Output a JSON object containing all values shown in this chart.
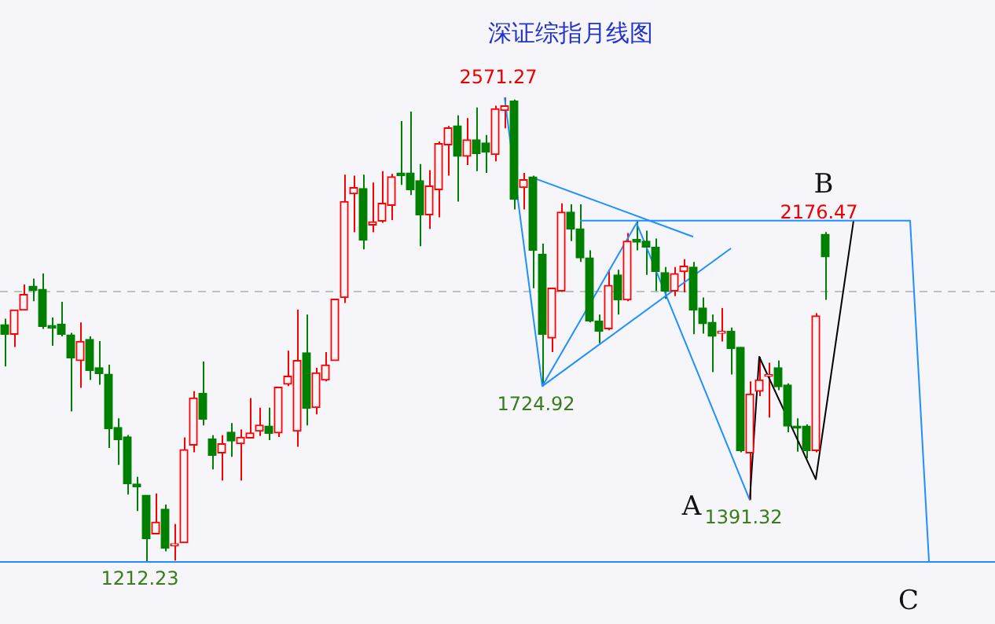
{
  "chart_data": {
    "type": "candlestick",
    "title": "深证综指月线图",
    "tick_labels": false,
    "categories": [
      null,
      null,
      null,
      null,
      null,
      null,
      null,
      null,
      null,
      null,
      null,
      null,
      null,
      null,
      null,
      null,
      null,
      null,
      null,
      null,
      null,
      null,
      null,
      null,
      null,
      null,
      null,
      null,
      null,
      null,
      null,
      null,
      null,
      null,
      null,
      null,
      null,
      null,
      null,
      null,
      null,
      null,
      null,
      null,
      null,
      null,
      null,
      null,
      null,
      null,
      null,
      null,
      null,
      null,
      null,
      null,
      null,
      null,
      null,
      null,
      null,
      null,
      null,
      null,
      null,
      null,
      null,
      null,
      null,
      null,
      null,
      null,
      null,
      null,
      null,
      null,
      null,
      null,
      null,
      null,
      null,
      null,
      null,
      null,
      null,
      null,
      null,
      null,
      null,
      null,
      null,
      null,
      null,
      null,
      null,
      null,
      null,
      null,
      null,
      null,
      null,
      null,
      null,
      null,
      null
    ],
    "ohlc": [
      [
        1905,
        1923,
        1783,
        1877
      ],
      [
        1877,
        1949,
        1840,
        1948
      ],
      [
        1948,
        2023,
        1948,
        1994
      ],
      [
        2018,
        2040,
        1974,
        2006
      ],
      [
        2009,
        2055,
        1893,
        1900
      ],
      [
        1903,
        1926,
        1843,
        1895
      ],
      [
        1907,
        1972,
        1871,
        1877
      ],
      [
        1875,
        1881,
        1651,
        1808
      ],
      [
        1800,
        1912,
        1720,
        1856
      ],
      [
        1862,
        1871,
        1743,
        1771
      ],
      [
        1779,
        1857,
        1729,
        1762
      ],
      [
        1760,
        1788,
        1544,
        1600
      ],
      [
        1604,
        1631,
        1494,
        1568
      ],
      [
        1576,
        1582,
        1407,
        1439
      ],
      [
        1438,
        1459,
        1359,
        1430
      ],
      [
        1405,
        1405,
        1212.23,
        1278
      ],
      [
        1292,
        1410,
        1292,
        1326
      ],
      [
        1364,
        1378,
        1241,
        1250
      ],
      [
        1257,
        1321,
        1214,
        1263
      ],
      [
        1266,
        1575,
        1266,
        1539
      ],
      [
        1552,
        1710,
        1531,
        1690
      ],
      [
        1704,
        1797,
        1610,
        1628
      ],
      [
        1570,
        1581,
        1481,
        1522
      ],
      [
        1529,
        1581,
        1448,
        1556
      ],
      [
        1590,
        1617,
        1518,
        1564
      ],
      [
        1556,
        1598,
        1448,
        1575
      ],
      [
        1573,
        1690,
        1573,
        1588
      ],
      [
        1593,
        1662,
        1579,
        1611
      ],
      [
        1608,
        1662,
        1567,
        1587
      ],
      [
        1588,
        1723,
        1576,
        1722
      ],
      [
        1731,
        1829,
        1725,
        1754
      ],
      [
        1593,
        1949,
        1547,
        1800
      ],
      [
        1823,
        1935,
        1610,
        1660
      ],
      [
        1662,
        1779,
        1642,
        1764
      ],
      [
        1743,
        1825,
        1739,
        1787
      ],
      [
        1800,
        1981,
        1800,
        1980
      ],
      [
        1985,
        2345,
        1969,
        2266
      ],
      [
        2289,
        2342,
        2176,
        2307
      ],
      [
        2304,
        2345,
        2126,
        2153
      ],
      [
        2197,
        2322,
        2176,
        2207
      ],
      [
        2209,
        2355,
        2204,
        2261
      ],
      [
        2255,
        2347,
        2212,
        2339
      ],
      [
        2350,
        2502,
        2315,
        2342
      ],
      [
        2350,
        2530,
        2285,
        2301
      ],
      [
        2327,
        2376,
        2135,
        2227
      ],
      [
        2227,
        2358,
        2186,
        2312
      ],
      [
        2301,
        2442,
        2220,
        2436
      ],
      [
        2432,
        2488,
        2342,
        2482
      ],
      [
        2488,
        2519,
        2266,
        2399
      ],
      [
        2399,
        2511,
        2373,
        2447
      ],
      [
        2447,
        2542,
        2355,
        2407
      ],
      [
        2438,
        2461,
        2350,
        2411
      ],
      [
        2404,
        2547,
        2384,
        2538
      ],
      [
        2533,
        2571.27,
        2481,
        2547
      ],
      [
        2561,
        2565,
        2243,
        2273
      ],
      [
        2307,
        2350,
        2243,
        2330
      ],
      [
        2338,
        2342,
        2012,
        2123
      ],
      [
        2112,
        2143,
        1724.92,
        1877
      ],
      [
        1866,
        2014,
        1825,
        2012
      ],
      [
        2004,
        2261,
        2001,
        2235
      ],
      [
        2235,
        2258,
        2150,
        2186
      ],
      [
        2186,
        2258,
        2089,
        2101
      ],
      [
        2101,
        2123,
        1912,
        1916
      ],
      [
        1916,
        1935,
        1851,
        1886
      ],
      [
        1893,
        2066,
        1889,
        2020
      ],
      [
        2051,
        2066,
        1935,
        1978
      ],
      [
        1978,
        2174,
        1974,
        2150
      ],
      [
        2155,
        2209,
        2123,
        2147
      ],
      [
        2150,
        2181,
        2051,
        2132
      ],
      [
        2132,
        2158,
        2004,
        2061
      ],
      [
        2058,
        2074,
        1981,
        2004
      ],
      [
        2004,
        2074,
        1989,
        2055
      ],
      [
        2061,
        2097,
        2000,
        2077
      ],
      [
        2074,
        2089,
        1877,
        1948
      ],
      [
        1954,
        1985,
        1879,
        1908
      ],
      [
        1912,
        1935,
        1766,
        1871
      ],
      [
        1880,
        1954,
        1856,
        1886
      ],
      [
        1886,
        1897,
        1759,
        1835
      ],
      [
        1839,
        1839,
        1531,
        1536
      ],
      [
        1529,
        1739,
        1391.32,
        1702
      ],
      [
        1710,
        1811,
        1696,
        1743
      ],
      [
        1754,
        1794,
        1633,
        1759
      ],
      [
        1779,
        1800,
        1713,
        1723
      ],
      [
        1728,
        1733,
        1590,
        1608
      ],
      [
        1608,
        1631,
        1533,
        1602
      ],
      [
        1608,
        1613,
        1513,
        1536
      ],
      [
        1536,
        1939,
        1531,
        1931
      ],
      [
        2170,
        2176.47,
        1978,
        2104
      ],
      null,
      null,
      null,
      null,
      null,
      null,
      null,
      null,
      null,
      null,
      null,
      null,
      null,
      null,
      null,
      null,
      null
    ],
    "colors": [
      "#008000",
      "#ff0000",
      "#ff0000",
      "#008000",
      "#008000",
      "#008000",
      "#008000",
      "#008000",
      "#ff0000",
      "#008000",
      "#008000",
      "#008000",
      "#008000",
      "#008000",
      "#008000",
      "#008000",
      "#ff0000",
      "#008000",
      "#ff0000",
      "#ff0000",
      "#ff0000",
      "#008000",
      "#008000",
      "#ff0000",
      "#008000",
      "#ff0000",
      "#ff0000",
      "#ff0000",
      "#008000",
      "#ff0000",
      "#ff0000",
      "#ff0000",
      "#008000",
      "#ff0000",
      "#ff0000",
      "#ff0000",
      "#ff0000",
      "#ff0000",
      "#008000",
      "#ff0000",
      "#ff0000",
      "#ff0000",
      "#008000",
      "#008000",
      "#008000",
      "#ff0000",
      "#ff0000",
      "#ff0000",
      "#008000",
      "#ff0000",
      "#008000",
      "#008000",
      "#ff0000",
      "#ff0000",
      "#008000",
      "#ff0000",
      "#008000",
      "#008000",
      "#ff0000",
      "#ff0000",
      "#008000",
      "#008000",
      "#008000",
      "#008000",
      "#ff0000",
      "#008000",
      "#ff0000",
      "#008000",
      "#008000",
      "#008000",
      "#008000",
      "#ff0000",
      "#ff0000",
      "#008000",
      "#008000",
      "#008000",
      "#ff0000",
      "#008000",
      "#008000",
      "#ff0000",
      "#ff0000",
      "#ff0000",
      "#008000",
      "#008000",
      "#008000",
      "#008000",
      "#ff0000",
      "#008000",
      null,
      null,
      null,
      null,
      null,
      null,
      null,
      null,
      null,
      null,
      null,
      null,
      null,
      null,
      null,
      null,
      null
    ],
    "series": [
      {
        "type": "line",
        "color": "#1e90ff",
        "values": [
          null,
          null,
          null,
          null,
          null,
          null,
          null,
          null,
          null,
          null,
          null,
          null,
          null,
          null,
          null,
          null,
          null,
          null,
          null,
          null,
          null,
          null,
          null,
          null,
          null,
          null,
          null,
          null,
          null,
          null,
          null,
          null,
          null,
          null,
          null,
          null,
          null,
          null,
          null,
          null,
          null,
          null,
          null,
          null,
          null,
          null,
          null,
          null,
          null,
          null,
          null,
          null,
          null,
          2571,
          null,
          null,
          null,
          1725,
          null,
          null,
          null,
          null,
          null,
          null,
          null,
          null,
          null,
          2203,
          null,
          null,
          null,
          null,
          null,
          null,
          null,
          null,
          null,
          null,
          null,
          1391,
          null,
          null,
          null,
          null,
          null,
          null,
          null,
          null,
          null,
          null,
          null,
          null,
          null,
          null,
          null,
          null,
          null,
          null,
          null,
          null,
          null,
          null,
          null,
          null,
          null
        ]
      },
      {
        "type": "line",
        "color": "#1e90ff",
        "values": [
          null,
          null,
          null,
          null,
          null,
          null,
          null,
          null,
          null,
          null,
          null,
          null,
          null,
          null,
          null,
          null,
          null,
          null,
          null,
          null,
          null,
          null,
          null,
          null,
          null,
          null,
          null,
          null,
          null,
          null,
          null,
          null,
          null,
          null,
          null,
          null,
          null,
          null,
          null,
          null,
          null,
          null,
          null,
          null,
          null,
          null,
          null,
          null,
          null,
          null,
          null,
          null,
          null,
          null,
          null,
          null,
          2336,
          null,
          null,
          null,
          null,
          null,
          null,
          null,
          null,
          null,
          null,
          null,
          null,
          null,
          null,
          null,
          null,
          2163,
          null,
          null,
          null,
          null,
          null,
          null,
          null,
          null,
          null,
          null,
          null,
          null,
          null,
          null,
          null,
          null,
          null,
          null,
          null,
          null,
          null,
          null,
          null,
          null,
          null,
          null,
          null,
          null,
          null,
          null,
          null
        ]
      },
      {
        "type": "line",
        "color": "#1e90ff",
        "values": [
          null,
          null,
          null,
          null,
          null,
          null,
          null,
          null,
          null,
          null,
          null,
          null,
          null,
          null,
          null,
          null,
          null,
          null,
          null,
          null,
          null,
          null,
          null,
          null,
          null,
          null,
          null,
          null,
          null,
          null,
          null,
          null,
          null,
          null,
          null,
          null,
          null,
          null,
          null,
          null,
          null,
          null,
          null,
          null,
          null,
          null,
          null,
          null,
          null,
          null,
          null,
          null,
          null,
          null,
          null,
          null,
          null,
          1725,
          null,
          null,
          null,
          null,
          null,
          null,
          null,
          null,
          null,
          null,
          null,
          null,
          null,
          null,
          null,
          null,
          null,
          null,
          null,
          2129,
          null,
          null,
          null,
          null,
          null,
          null,
          null,
          null,
          null,
          null,
          null,
          null,
          null,
          null,
          null,
          null,
          null,
          null,
          null,
          null,
          null,
          null,
          null,
          null,
          null,
          null,
          null
        ]
      },
      {
        "type": "line",
        "color": "#1e90ff",
        "values": [
          null,
          null,
          null,
          null,
          null,
          null,
          null,
          null,
          null,
          null,
          null,
          null,
          null,
          null,
          null,
          null,
          null,
          null,
          null,
          null,
          null,
          null,
          null,
          null,
          null,
          null,
          null,
          null,
          null,
          null,
          null,
          null,
          null,
          null,
          null,
          null,
          null,
          null,
          null,
          null,
          null,
          null,
          null,
          null,
          null,
          null,
          null,
          null,
          null,
          null,
          null,
          null,
          null,
          null,
          null,
          null,
          null,
          null,
          null,
          null,
          null,
          2210,
          null,
          null,
          null,
          null,
          null,
          null,
          null,
          null,
          null,
          null,
          null,
          null,
          null,
          null,
          null,
          null,
          null,
          null,
          null,
          null,
          null,
          null,
          null,
          null,
          null,
          null,
          null,
          null,
          null,
          null,
          null,
          null,
          null,
          null,
          2210,
          null,
          1212,
          null,
          null,
          null,
          null,
          null,
          null
        ]
      },
      {
        "type": "line",
        "color": "#000000",
        "values": [
          null,
          null,
          null,
          null,
          null,
          null,
          null,
          null,
          null,
          null,
          null,
          null,
          null,
          null,
          null,
          null,
          null,
          null,
          null,
          null,
          null,
          null,
          null,
          null,
          null,
          null,
          null,
          null,
          null,
          null,
          null,
          null,
          null,
          null,
          null,
          null,
          null,
          null,
          null,
          null,
          null,
          null,
          null,
          null,
          null,
          null,
          null,
          null,
          null,
          null,
          null,
          null,
          null,
          null,
          null,
          null,
          null,
          null,
          null,
          null,
          null,
          null,
          null,
          null,
          null,
          null,
          null,
          null,
          null,
          null,
          null,
          null,
          null,
          null,
          null,
          null,
          null,
          null,
          null,
          1391,
          1811,
          null,
          null,
          null,
          null,
          null,
          1452,
          null,
          null,
          null,
          2210,
          null,
          null,
          null,
          null,
          null,
          null,
          null,
          null,
          null,
          null,
          null,
          null,
          null,
          null
        ]
      }
    ],
    "ref_lines": [
      {
        "axis": "y",
        "value": 2004,
        "color": "#c0c0c0",
        "line_style": "dashed"
      },
      {
        "axis": "y",
        "value": 1212.23,
        "color": "#1e90ff",
        "line_style": "solid"
      }
    ],
    "annotations": [
      "A",
      "B",
      "C",
      {
        "text": "2571.27",
        "y": 2571.27
      },
      {
        "text": "1724.92",
        "y": 1724.92
      },
      {
        "text": "1391.32",
        "y": 1391.32
      },
      {
        "text": "2176.47",
        "y": 2176.47
      },
      {
        "text": "1212.23",
        "y": 1212.23
      }
    ]
  }
}
